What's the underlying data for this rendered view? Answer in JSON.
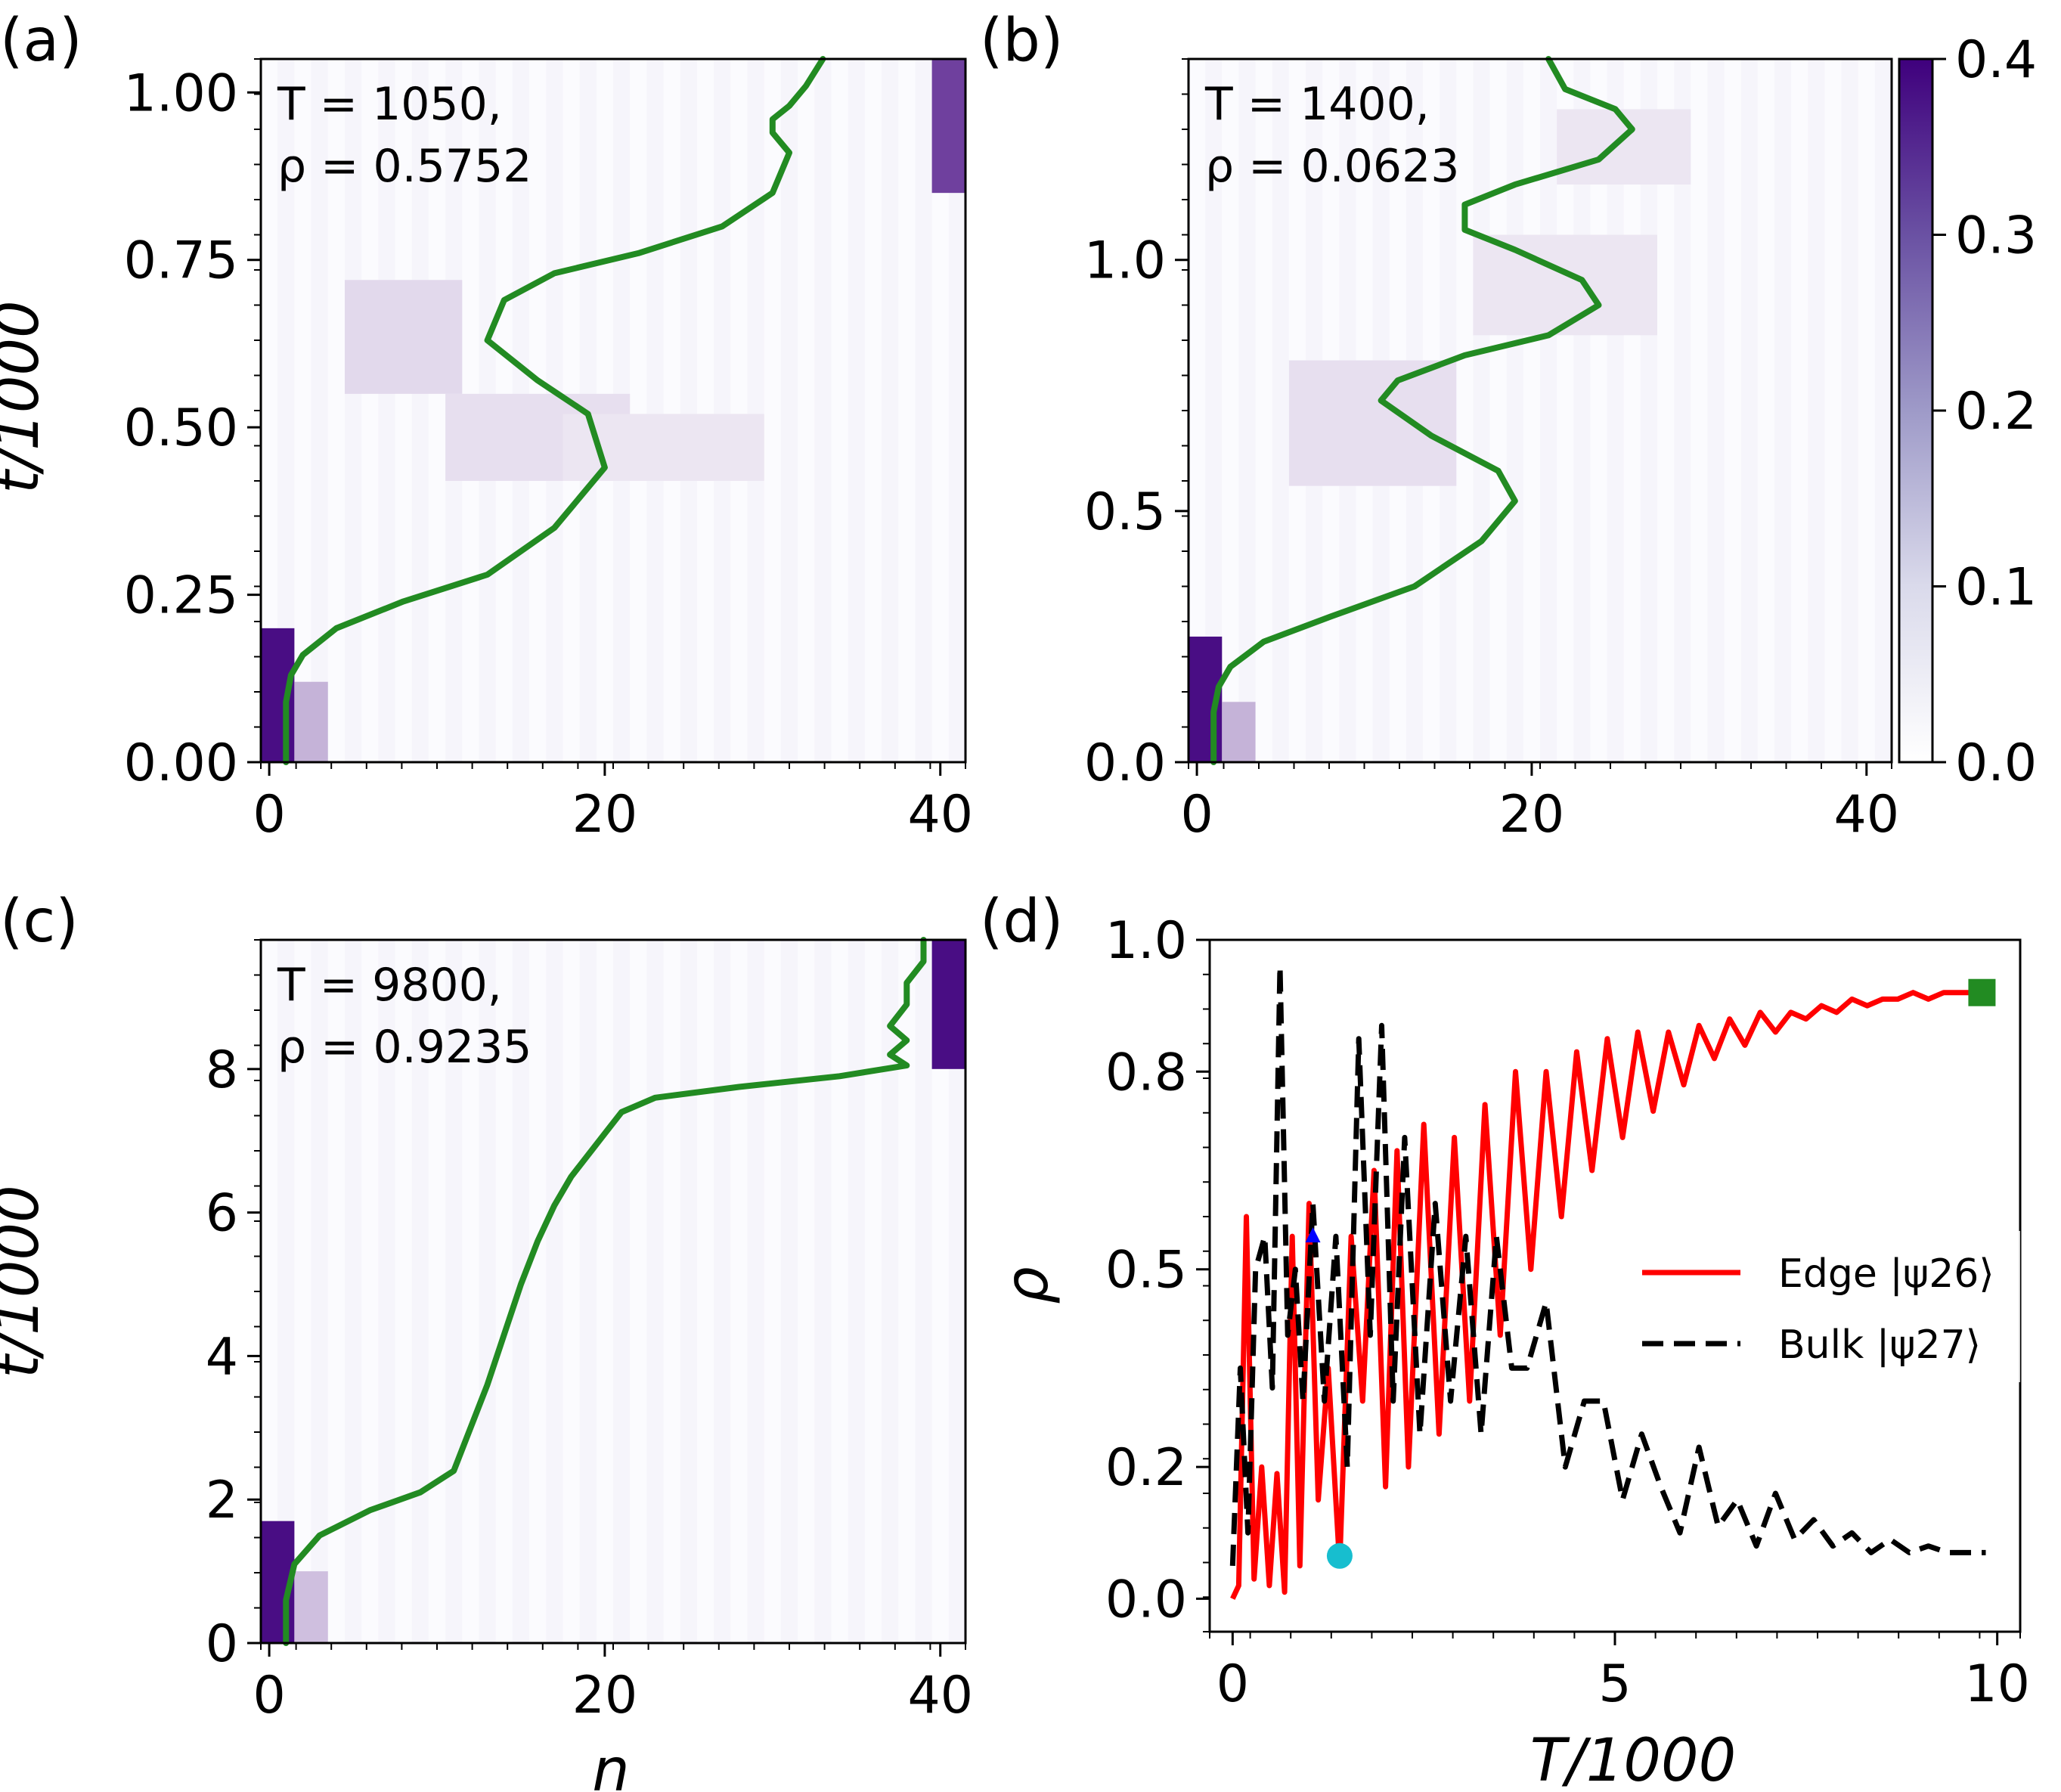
{
  "chart_data": [
    {
      "panel": "(a)",
      "type": "heatmap",
      "annotation": [
        "T = 1050,",
        "ρ = 0.5752"
      ],
      "xlabel": "",
      "ylabel": "t/1000",
      "xlim": [
        -0.5,
        41.5
      ],
      "ylim": [
        0,
        1.05
      ],
      "xticks": [
        0,
        20,
        40
      ],
      "yticks": [
        0.0,
        0.25,
        0.5,
        0.75,
        1.0
      ],
      "xtick_labels": [
        "0",
        "20",
        "40"
      ],
      "ytick_labels": [
        "0.00",
        "0.25",
        "0.50",
        "0.75",
        "1.00"
      ],
      "heat_blobs": [
        {
          "n0": 0,
          "n1": 2,
          "t0": 0.0,
          "t1": 0.2,
          "level": 0.38
        },
        {
          "n0": 2,
          "n1": 4,
          "t0": 0.0,
          "t1": 0.12,
          "level": 0.12
        },
        {
          "n0": 5,
          "n1": 12,
          "t0": 0.55,
          "t1": 0.72,
          "level": 0.06
        },
        {
          "n0": 11,
          "n1": 22,
          "t0": 0.42,
          "t1": 0.55,
          "level": 0.05
        },
        {
          "n0": 18,
          "n1": 30,
          "t0": 0.42,
          "t1": 0.52,
          "level": 0.04
        },
        {
          "n0": 40,
          "n1": 42,
          "t0": 0.85,
          "t1": 1.05,
          "level": 0.3
        }
      ],
      "curve": {
        "x": [
          1,
          1,
          1.3,
          2,
          4,
          8,
          13,
          17,
          20,
          19,
          16,
          13,
          14,
          17,
          22,
          27,
          30,
          31,
          30,
          30,
          31,
          32,
          33
        ],
        "y": [
          0,
          0.09,
          0.13,
          0.16,
          0.2,
          0.24,
          0.28,
          0.35,
          0.44,
          0.52,
          0.57,
          0.63,
          0.69,
          0.73,
          0.76,
          0.8,
          0.85,
          0.91,
          0.94,
          0.96,
          0.98,
          1.01,
          1.05
        ],
        "color": "#228B22"
      }
    },
    {
      "panel": "(b)",
      "type": "heatmap",
      "annotation": [
        "T = 1400,",
        "ρ = 0.0623"
      ],
      "xlabel": "",
      "ylabel": "",
      "xlim": [
        -0.5,
        41.5
      ],
      "ylim": [
        0,
        1.4
      ],
      "xticks": [
        0,
        20,
        40
      ],
      "yticks": [
        0.0,
        0.5,
        1.0
      ],
      "xtick_labels": [
        "0",
        "20",
        "40"
      ],
      "ytick_labels": [
        "0.0",
        "0.5",
        "1.0"
      ],
      "heat_blobs": [
        {
          "n0": 0,
          "n1": 2,
          "t0": 0.0,
          "t1": 0.25,
          "level": 0.38
        },
        {
          "n0": 2,
          "n1": 4,
          "t0": 0.0,
          "t1": 0.12,
          "level": 0.12
        },
        {
          "n0": 6,
          "n1": 16,
          "t0": 0.55,
          "t1": 0.8,
          "level": 0.05
        },
        {
          "n0": 17,
          "n1": 28,
          "t0": 0.85,
          "t1": 1.05,
          "level": 0.04
        },
        {
          "n0": 22,
          "n1": 30,
          "t0": 1.15,
          "t1": 1.3,
          "level": 0.04
        }
      ],
      "curve": {
        "x": [
          1,
          1,
          1.3,
          2,
          4,
          8,
          13,
          17,
          19,
          18,
          14,
          11,
          12,
          16,
          21,
          24,
          23,
          19,
          16,
          16,
          19,
          24,
          26,
          25,
          22,
          21
        ],
        "y": [
          0,
          0.1,
          0.15,
          0.19,
          0.24,
          0.29,
          0.35,
          0.44,
          0.52,
          0.58,
          0.65,
          0.72,
          0.76,
          0.81,
          0.85,
          0.91,
          0.96,
          1.02,
          1.06,
          1.11,
          1.15,
          1.2,
          1.26,
          1.3,
          1.34,
          1.4
        ],
        "color": "#228B22"
      }
    },
    {
      "panel": "(c)",
      "type": "heatmap",
      "annotation": [
        "T = 9800,",
        "ρ = 0.9235"
      ],
      "xlabel": "n",
      "ylabel": "t/1000",
      "xlim": [
        -0.5,
        41.5
      ],
      "ylim": [
        0,
        9.8
      ],
      "xticks": [
        0,
        20,
        40
      ],
      "yticks": [
        0,
        2,
        4,
        6,
        8
      ],
      "xtick_labels": [
        "0",
        "20",
        "40"
      ],
      "ytick_labels": [
        "0",
        "2",
        "4",
        "6",
        "8"
      ],
      "heat_blobs": [
        {
          "n0": 0,
          "n1": 2,
          "t0": 0.0,
          "t1": 1.7,
          "level": 0.38
        },
        {
          "n0": 2,
          "n1": 4,
          "t0": 0.0,
          "t1": 1.0,
          "level": 0.1
        },
        {
          "n0": 40,
          "n1": 42,
          "t0": 8.0,
          "t1": 9.8,
          "level": 0.38
        }
      ],
      "curve": {
        "x": [
          1,
          1,
          1.5,
          3,
          6,
          9,
          11,
          12,
          13,
          14,
          15,
          16,
          17,
          18,
          19,
          20,
          21,
          23,
          28,
          34,
          38,
          37,
          38,
          37,
          38,
          38,
          39,
          39
        ],
        "y": [
          0,
          0.6,
          1.1,
          1.5,
          1.85,
          2.1,
          2.4,
          3.0,
          3.6,
          4.3,
          5.0,
          5.6,
          6.1,
          6.5,
          6.8,
          7.1,
          7.4,
          7.6,
          7.75,
          7.9,
          8.05,
          8.2,
          8.4,
          8.6,
          8.9,
          9.2,
          9.5,
          9.8
        ],
        "color": "#228B22"
      }
    },
    {
      "panel": "(d)",
      "type": "line",
      "xlabel": "T/1000",
      "ylabel": "ρ",
      "xlim": [
        -0.3,
        10.3
      ],
      "ylim": [
        -0.05,
        1.0
      ],
      "xticks": [
        0,
        5,
        10
      ],
      "yticks": [
        0.0,
        0.2,
        0.5,
        0.8,
        1.0
      ],
      "xtick_labels": [
        "0",
        "5",
        "10"
      ],
      "ytick_labels": [
        "0.0",
        "0.2",
        "0.5",
        "0.8",
        "1.0"
      ],
      "series": [
        {
          "name": "Edge |ψ26⟩",
          "color": "#ff0000",
          "dash": "solid",
          "x": [
            0.0,
            0.08,
            0.18,
            0.28,
            0.38,
            0.48,
            0.58,
            0.68,
            0.78,
            0.88,
            1.0,
            1.12,
            1.25,
            1.4,
            1.55,
            1.7,
            1.85,
            2.0,
            2.15,
            2.3,
            2.5,
            2.7,
            2.9,
            3.1,
            3.3,
            3.5,
            3.7,
            3.9,
            4.1,
            4.3,
            4.5,
            4.7,
            4.9,
            5.1,
            5.3,
            5.5,
            5.7,
            5.9,
            6.1,
            6.3,
            6.5,
            6.7,
            6.9,
            7.1,
            7.3,
            7.5,
            7.7,
            7.9,
            8.1,
            8.3,
            8.5,
            8.7,
            8.9,
            9.1,
            9.3,
            9.5,
            9.7,
            9.9
          ],
          "y": [
            0.0,
            0.02,
            0.58,
            0.03,
            0.2,
            0.02,
            0.19,
            0.01,
            0.55,
            0.05,
            0.6,
            0.15,
            0.35,
            0.05,
            0.55,
            0.3,
            0.65,
            0.17,
            0.68,
            0.2,
            0.72,
            0.25,
            0.7,
            0.3,
            0.75,
            0.4,
            0.8,
            0.5,
            0.8,
            0.58,
            0.83,
            0.65,
            0.85,
            0.7,
            0.86,
            0.74,
            0.86,
            0.78,
            0.87,
            0.82,
            0.88,
            0.84,
            0.89,
            0.86,
            0.89,
            0.88,
            0.9,
            0.89,
            0.91,
            0.9,
            0.91,
            0.91,
            0.92,
            0.91,
            0.92,
            0.92,
            0.92,
            0.92
          ],
          "_note": "values read from plot"
        },
        {
          "name": "Bulk |ψ27⟩",
          "color": "#000000",
          "dash": "dashed",
          "x": [
            0.0,
            0.1,
            0.2,
            0.3,
            0.42,
            0.52,
            0.62,
            0.72,
            0.82,
            0.92,
            1.05,
            1.2,
            1.35,
            1.5,
            1.65,
            1.8,
            1.95,
            2.1,
            2.25,
            2.45,
            2.65,
            2.85,
            3.05,
            3.25,
            3.45,
            3.65,
            3.85,
            4.1,
            4.35,
            4.6,
            4.85,
            5.1,
            5.35,
            5.6,
            5.85,
            6.1,
            6.35,
            6.6,
            6.85,
            7.1,
            7.35,
            7.6,
            7.85,
            8.1,
            8.35,
            8.6,
            8.85,
            9.1,
            9.35,
            9.6,
            9.85
          ],
          "y": [
            0.05,
            0.35,
            0.1,
            0.5,
            0.55,
            0.32,
            0.96,
            0.4,
            0.5,
            0.3,
            0.6,
            0.3,
            0.55,
            0.2,
            0.85,
            0.4,
            0.87,
            0.3,
            0.7,
            0.25,
            0.6,
            0.3,
            0.55,
            0.25,
            0.55,
            0.35,
            0.35,
            0.45,
            0.2,
            0.3,
            0.3,
            0.15,
            0.25,
            0.17,
            0.1,
            0.23,
            0.11,
            0.15,
            0.08,
            0.16,
            0.09,
            0.12,
            0.08,
            0.1,
            0.07,
            0.09,
            0.07,
            0.08,
            0.07,
            0.07,
            0.07
          ]
        }
      ],
      "markers": [
        {
          "shape": "circle",
          "color": "#17becf",
          "x": 1.4,
          "y": 0.065
        },
        {
          "shape": "triangle",
          "color": "#0000ff",
          "x": 1.05,
          "y": 0.55
        },
        {
          "shape": "square",
          "color": "#228B22",
          "x": 9.8,
          "y": 0.92
        }
      ],
      "legend_placement": "center-right"
    }
  ],
  "colorbar": {
    "ticks": [
      0.0,
      0.1,
      0.2,
      0.3,
      0.4
    ],
    "tick_labels": [
      "0.0",
      "0.1",
      "0.2",
      "0.3",
      "0.4"
    ],
    "max": 0.4,
    "color_low": "#ffffff",
    "color_high": "#3f007d"
  },
  "labels": {
    "panel_a": "(a)",
    "panel_b": "(b)",
    "panel_c": "(c)",
    "panel_d": "(d)",
    "ylabel_a": "t/1000",
    "ylabel_c": "t/1000",
    "xlabel_c": "n",
    "ylabel_d": "ρ",
    "xlabel_d": "T/1000",
    "legend_edge": "Edge |ψ26⟩",
    "legend_bulk": "Bulk |ψ27⟩"
  }
}
